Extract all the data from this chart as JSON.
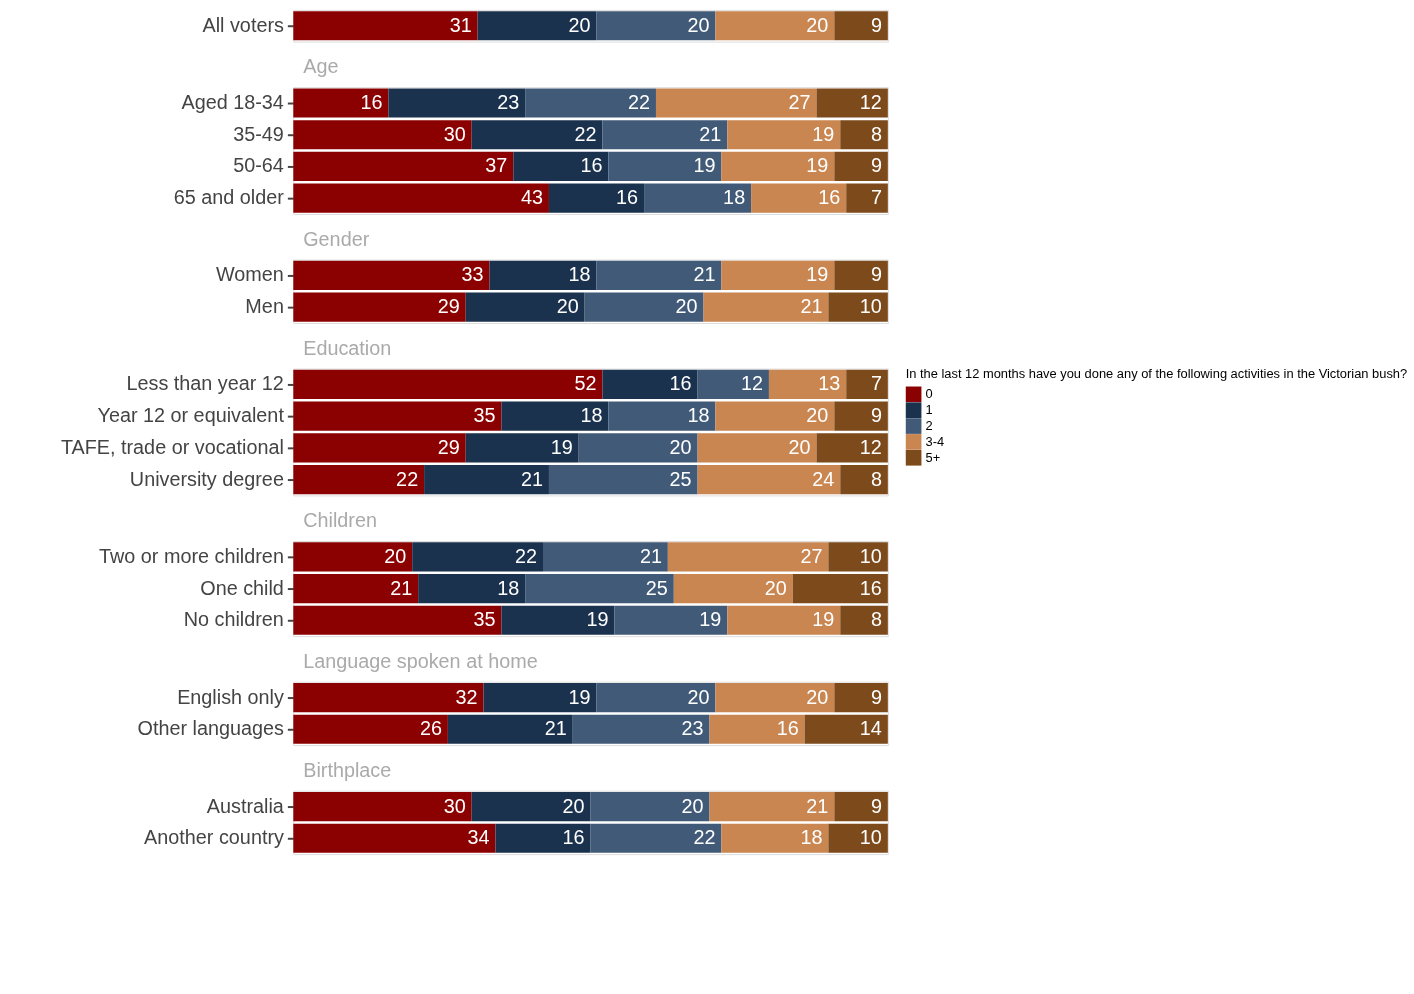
{
  "chart_data": [
    {
      "type": "bar",
      "orientation": "horizontal",
      "stacked": true,
      "data_labels": true,
      "categories": [
        "All voters"
      ],
      "series": [
        {
          "color": "#8b0000",
          "values": [
            31
          ]
        },
        {
          "color": "#1b324f",
          "values": [
            20
          ]
        },
        {
          "color": "#405a78",
          "values": [
            20
          ]
        },
        {
          "color": "#c98651",
          "values": [
            20
          ]
        },
        {
          "color": "#7d4a1b",
          "values": [
            9
          ]
        }
      ]
    },
    {
      "type": "bar",
      "orientation": "horizontal",
      "stacked": true,
      "data_labels": true,
      "title": "Age",
      "categories": [
        "Aged 18-34",
        "35-49",
        "50-64",
        "65 and older"
      ],
      "series": [
        {
          "color": "#8b0000",
          "values": [
            16,
            30,
            37,
            43
          ]
        },
        {
          "color": "#1b324f",
          "values": [
            23,
            22,
            16,
            16
          ]
        },
        {
          "color": "#405a78",
          "values": [
            22,
            21,
            19,
            18
          ]
        },
        {
          "color": "#c98651",
          "values": [
            27,
            19,
            19,
            16
          ]
        },
        {
          "color": "#7d4a1b",
          "values": [
            12,
            8,
            9,
            7
          ]
        }
      ]
    },
    {
      "type": "bar",
      "orientation": "horizontal",
      "stacked": true,
      "data_labels": true,
      "title": "Gender",
      "categories": [
        "Women",
        "Men"
      ],
      "series": [
        {
          "color": "#8b0000",
          "values": [
            33,
            29
          ]
        },
        {
          "color": "#1b324f",
          "values": [
            18,
            20
          ]
        },
        {
          "color": "#405a78",
          "values": [
            21,
            20
          ]
        },
        {
          "color": "#c98651",
          "values": [
            19,
            21
          ]
        },
        {
          "color": "#7d4a1b",
          "values": [
            9,
            10
          ]
        }
      ]
    },
    {
      "type": "bar",
      "orientation": "horizontal",
      "stacked": true,
      "data_labels": true,
      "title": "Education",
      "legend": "right",
      "legend_title": "In the last 12 months have you done any of the following activities in the Victorian bush?",
      "categories": [
        "Less than year 12",
        "Year 12 or equivalent",
        "TAFE, trade or vocational",
        "University degree"
      ],
      "series": [
        {
          "name": "0",
          "color": "#8b0000",
          "values": [
            52,
            35,
            29,
            22
          ]
        },
        {
          "name": "1",
          "color": "#1b324f",
          "values": [
            16,
            18,
            19,
            21
          ]
        },
        {
          "name": "2",
          "color": "#405a78",
          "values": [
            12,
            18,
            20,
            25
          ]
        },
        {
          "name": "3-4",
          "color": "#c98651",
          "values": [
            13,
            20,
            20,
            24
          ]
        },
        {
          "name": "5+",
          "color": "#7d4a1b",
          "values": [
            7,
            9,
            12,
            8
          ]
        }
      ]
    },
    {
      "type": "bar",
      "orientation": "horizontal",
      "stacked": true,
      "data_labels": true,
      "title": "Children",
      "categories": [
        "Two or more children",
        "One child",
        "No children"
      ],
      "series": [
        {
          "color": "#8b0000",
          "values": [
            20,
            21,
            35
          ]
        },
        {
          "color": "#1b324f",
          "values": [
            22,
            18,
            19
          ]
        },
        {
          "color": "#405a78",
          "values": [
            21,
            25,
            19
          ]
        },
        {
          "color": "#c98651",
          "values": [
            27,
            20,
            19
          ]
        },
        {
          "color": "#7d4a1b",
          "values": [
            10,
            16,
            8
          ]
        }
      ]
    },
    {
      "type": "bar",
      "orientation": "horizontal",
      "stacked": true,
      "data_labels": true,
      "title": "Language spoken at home",
      "categories": [
        "English only",
        "Other languages"
      ],
      "series": [
        {
          "color": "#8b0000",
          "values": [
            32,
            26
          ]
        },
        {
          "color": "#1b324f",
          "values": [
            19,
            21
          ]
        },
        {
          "color": "#405a78",
          "values": [
            20,
            23
          ]
        },
        {
          "color": "#c98651",
          "values": [
            20,
            16
          ]
        },
        {
          "color": "#7d4a1b",
          "values": [
            9,
            14
          ]
        }
      ]
    },
    {
      "type": "bar",
      "orientation": "horizontal",
      "stacked": true,
      "data_labels": true,
      "title": "Birthplace",
      "categories": [
        "Australia",
        "Another country"
      ],
      "series": [
        {
          "color": "#8b0000",
          "values": [
            30,
            34
          ]
        },
        {
          "color": "#1b324f",
          "values": [
            20,
            16
          ]
        },
        {
          "color": "#405a78",
          "values": [
            20,
            22
          ]
        },
        {
          "color": "#c98651",
          "values": [
            21,
            18
          ]
        },
        {
          "color": "#7d4a1b",
          "values": [
            9,
            10
          ]
        }
      ]
    }
  ]
}
